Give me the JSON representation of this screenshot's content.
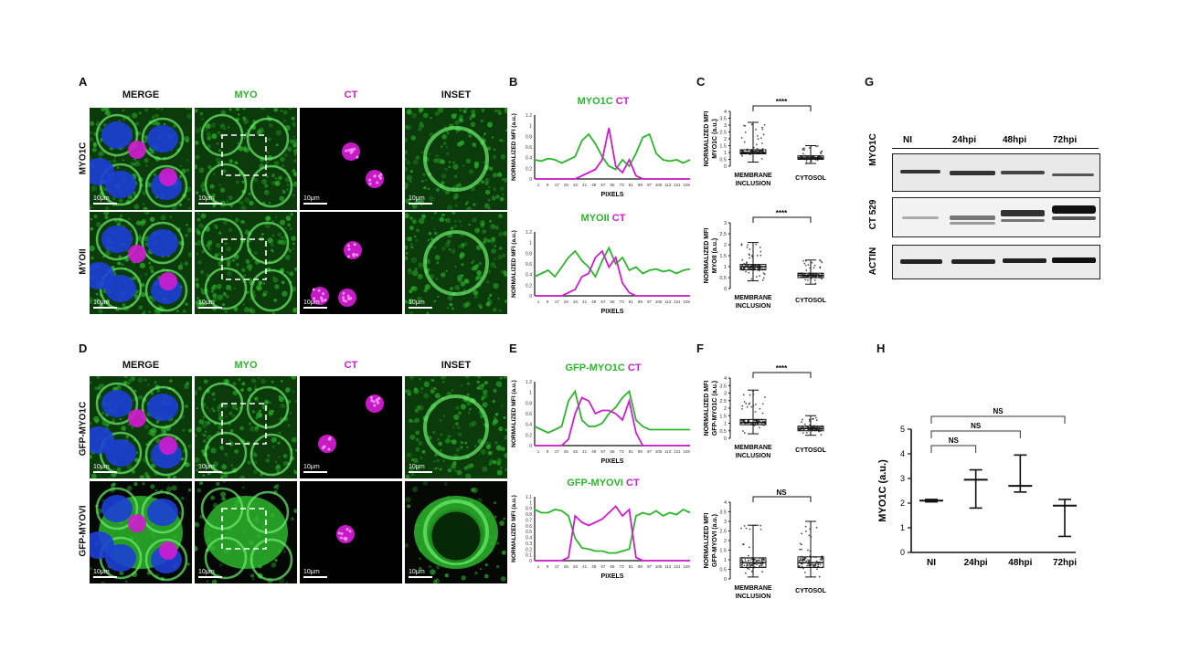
{
  "panels": {
    "A": "A",
    "B": "B",
    "C": "C",
    "D": "D",
    "E": "E",
    "F": "F",
    "G": "G",
    "H": "H"
  },
  "micro_cols": {
    "merge": "MERGE",
    "myo": "MYO",
    "ct": "CT",
    "inset": "INSET"
  },
  "rows_top": [
    "MYO1C",
    "MYOII"
  ],
  "rows_bottom": [
    "GFP-MYO1C",
    "GFP-MYOVI"
  ],
  "scale_label": "10μm",
  "colors": {
    "green": "#2db52d",
    "magenta": "#d01cd0",
    "blue": "#1c3fd6"
  },
  "line_plots": [
    {
      "title_a": "MYO1C",
      "title_b": "CT",
      "ylabel": "NORMALIZED MFI (a.u.)",
      "xlabel": "PIXELS",
      "ymax": 1.2,
      "yticks": [
        "0",
        "0.2",
        "0.4",
        "0.6",
        "0.8",
        "1",
        "1.2"
      ],
      "xticks": [
        "1",
        "9",
        "17",
        "25",
        "33",
        "41",
        "49",
        "57",
        "65",
        "73",
        "81",
        "89",
        "97",
        "105",
        "113",
        "121",
        "129"
      ]
    },
    {
      "title_a": "MYOII",
      "title_b": "CT",
      "ylabel": "NORMALIZED MFI (a.u.)",
      "xlabel": "PIXELS",
      "ymax": 1.2,
      "yticks": [
        "0",
        "0.2",
        "0.4",
        "0.6",
        "0.8",
        "1",
        "1.2"
      ],
      "xticks": [
        "1",
        "9",
        "17",
        "25",
        "33",
        "41",
        "49",
        "57",
        "65",
        "73",
        "81",
        "89",
        "97",
        "105",
        "113",
        "121",
        "129"
      ]
    },
    {
      "title_a": "GFP-MYO1C",
      "title_b": "CT",
      "ylabel": "NORMALIZED MFI (a.u.)",
      "xlabel": "PIXELS",
      "ymax": 1.2,
      "yticks": [
        "0",
        "0.2",
        "0.4",
        "0.6",
        "0.8",
        "1",
        "1.2"
      ],
      "xticks": [
        "1",
        "9",
        "17",
        "25",
        "33",
        "41",
        "49",
        "57",
        "65",
        "73",
        "81",
        "89",
        "97",
        "105",
        "113",
        "121",
        "129"
      ]
    },
    {
      "title_a": "GFP-MYOVI",
      "title_b": "CT",
      "ylabel": "NORMALIZED MFI (a.u.)",
      "xlabel": "PIXELS",
      "ymax": 1.2,
      "yticks": [
        "0",
        "0.1",
        "0.2",
        "0.3",
        "0.4",
        "0.5",
        "0.6",
        "0.7",
        "0.8",
        "0.9",
        "1",
        "1.1"
      ],
      "xticks": [
        "1",
        "9",
        "17",
        "25",
        "33",
        "41",
        "49",
        "57",
        "65",
        "73",
        "81",
        "89",
        "97",
        "105",
        "113",
        "121",
        "129"
      ]
    }
  ],
  "box_plots": [
    {
      "ylabel": "NORMALIZED MFI MYO1C (a.u.)",
      "sig": "****",
      "ymax": 4,
      "yticks": [
        "0",
        "0.5",
        "1",
        "1.5",
        "2",
        "2.5",
        "3",
        "3.5",
        "4"
      ],
      "cat1": "MEMBRANE",
      "cat1b": "INCLUSION",
      "cat2": "CYTOSOL",
      "g1": {
        "min": 0.3,
        "q1": 0.9,
        "med": 1.0,
        "q3": 1.2,
        "max": 3.2
      },
      "g2": {
        "min": 0.2,
        "q1": 0.5,
        "med": 0.6,
        "q3": 0.75,
        "max": 1.5
      }
    },
    {
      "ylabel": "NORMALIZED MFI MYOII (a.u.)",
      "sig": "****",
      "ymax": 3,
      "yticks": [
        "0",
        "0.5",
        "1",
        "1.5",
        "2",
        "2.5",
        "3"
      ],
      "cat1": "MEMBRANE",
      "cat1b": "INCLUSION",
      "cat2": "CYTOSOL",
      "g1": {
        "min": 0.35,
        "q1": 0.85,
        "med": 1.0,
        "q3": 1.1,
        "max": 2.1
      },
      "g2": {
        "min": 0.2,
        "q1": 0.5,
        "med": 0.6,
        "q3": 0.7,
        "max": 1.3
      }
    },
    {
      "ylabel": "NORMALIZED MFI GFP-MYO1C (a.u.)",
      "sig": "****",
      "ymax": 4,
      "yticks": [
        "0",
        "0.5",
        "1",
        "1.5",
        "2",
        "2.5",
        "3",
        "3.5",
        "4"
      ],
      "cat1": "MEMBRANE",
      "cat1b": "INCLUSION",
      "cat2": "CYTOSOL",
      "g1": {
        "min": 0.3,
        "q1": 0.9,
        "med": 1.05,
        "q3": 1.25,
        "max": 3.2
      },
      "g2": {
        "min": 0.2,
        "q1": 0.5,
        "med": 0.65,
        "q3": 0.8,
        "max": 1.5
      }
    },
    {
      "ylabel": "NORMALIZED MFI GFP-MYOVI (a.u.)",
      "sig": "NS",
      "ymax": 4,
      "yticks": [
        "0",
        "0.5",
        "1",
        "1.5",
        "2",
        "2.5",
        "3",
        "3.5",
        "4"
      ],
      "cat1": "MEMBRANE",
      "cat1b": "INCLUSION",
      "cat2": "CYTOSOL",
      "g1": {
        "min": 0.1,
        "q1": 0.6,
        "med": 0.85,
        "q3": 1.1,
        "max": 2.8
      },
      "g2": {
        "min": 0.1,
        "q1": 0.6,
        "med": 0.85,
        "q3": 1.15,
        "max": 3.0
      }
    }
  ],
  "western": {
    "lanes": [
      "NI",
      "24hpi",
      "48hpi",
      "72hpi"
    ],
    "rows": [
      "MYO1C",
      "CT 529",
      "ACTIN"
    ]
  },
  "chart_data": {
    "type": "scatter",
    "categories": [
      "NI",
      "24hpi",
      "48hpi",
      "72hpi"
    ],
    "ylabel": "MYO1C (a.u.)",
    "ylim": [
      0,
      5
    ],
    "yticks": [
      "0",
      "1",
      "2",
      "3",
      "4",
      "5"
    ],
    "mean": [
      2.1,
      2.95,
      2.7,
      1.9
    ],
    "min": [
      2.05,
      1.8,
      2.45,
      0.65
    ],
    "max": [
      2.15,
      3.35,
      3.95,
      2.15
    ],
    "comparisons": [
      {
        "from": "NI",
        "to": "24hpi",
        "label": "NS"
      },
      {
        "from": "NI",
        "to": "48hpi",
        "label": "NS"
      },
      {
        "from": "NI",
        "to": "72hpi",
        "label": "NS"
      }
    ]
  }
}
